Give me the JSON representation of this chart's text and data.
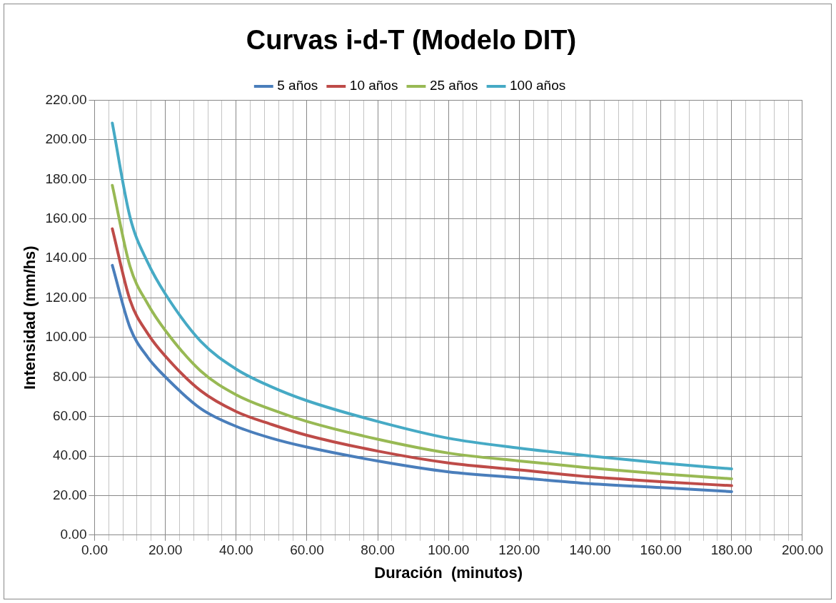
{
  "chart_data": {
    "type": "line",
    "title": "Curvas i-d-T (Modelo DIT)",
    "xlabel": "Duración  (minutos)",
    "ylabel": "Intensidad (mm/hs)",
    "x": [
      5,
      10,
      15,
      20,
      30,
      40,
      50,
      60,
      80,
      100,
      120,
      140,
      160,
      180
    ],
    "series": [
      {
        "name": "5 años",
        "color": "#4a7ebb",
        "values": [
          136.5,
          105,
          90,
          80,
          64,
          55,
          49,
          44.5,
          37.5,
          32,
          29,
          26,
          24,
          22
        ]
      },
      {
        "name": "10 años",
        "color": "#be4b48",
        "values": [
          155,
          119,
          102,
          90.5,
          73,
          62.5,
          56,
          50.5,
          42.5,
          36.5,
          33,
          29.5,
          27,
          25
        ]
      },
      {
        "name": "25 años",
        "color": "#98b954",
        "values": [
          177,
          136,
          117,
          103.5,
          83,
          71,
          63.5,
          57.5,
          48.5,
          41.5,
          37.5,
          34,
          31,
          28.5
        ]
      },
      {
        "name": "100 años",
        "color": "#46aac5",
        "values": [
          208.5,
          161,
          138,
          122,
          98,
          84,
          75,
          68,
          57.5,
          49,
          44,
          40,
          36.5,
          33.5
        ]
      }
    ],
    "xlim": [
      0,
      200
    ],
    "xticks": [
      {
        "value": 0,
        "label": "0.00"
      },
      {
        "value": 4,
        "label": null
      },
      {
        "value": 8,
        "label": null
      },
      {
        "value": 12,
        "label": null
      },
      {
        "value": 16,
        "label": null
      },
      {
        "value": 20,
        "label": "20.00"
      },
      {
        "value": 24,
        "label": null
      },
      {
        "value": 28,
        "label": null
      },
      {
        "value": 32,
        "label": null
      },
      {
        "value": 36,
        "label": null
      },
      {
        "value": 40,
        "label": "40.00"
      },
      {
        "value": 44,
        "label": null
      },
      {
        "value": 48,
        "label": null
      },
      {
        "value": 52,
        "label": null
      },
      {
        "value": 56,
        "label": null
      },
      {
        "value": 60,
        "label": "60.00"
      },
      {
        "value": 64,
        "label": null
      },
      {
        "value": 68,
        "label": null
      },
      {
        "value": 72,
        "label": null
      },
      {
        "value": 76,
        "label": null
      },
      {
        "value": 80,
        "label": "80.00"
      },
      {
        "value": 84,
        "label": null
      },
      {
        "value": 88,
        "label": null
      },
      {
        "value": 92,
        "label": null
      },
      {
        "value": 96,
        "label": null
      },
      {
        "value": 100,
        "label": "100.00"
      },
      {
        "value": 104,
        "label": null
      },
      {
        "value": 108,
        "label": null
      },
      {
        "value": 112,
        "label": null
      },
      {
        "value": 116,
        "label": null
      },
      {
        "value": 120,
        "label": "120.00"
      },
      {
        "value": 124,
        "label": null
      },
      {
        "value": 128,
        "label": null
      },
      {
        "value": 132,
        "label": null
      },
      {
        "value": 136,
        "label": null
      },
      {
        "value": 140,
        "label": "140.00"
      },
      {
        "value": 144,
        "label": null
      },
      {
        "value": 148,
        "label": null
      },
      {
        "value": 152,
        "label": null
      },
      {
        "value": 156,
        "label": null
      },
      {
        "value": 160,
        "label": "160.00"
      },
      {
        "value": 164,
        "label": null
      },
      {
        "value": 168,
        "label": null
      },
      {
        "value": 172,
        "label": null
      },
      {
        "value": 176,
        "label": null
      },
      {
        "value": 180,
        "label": "180.00"
      },
      {
        "value": 184,
        "label": null
      },
      {
        "value": 188,
        "label": null
      },
      {
        "value": 192,
        "label": null
      },
      {
        "value": 196,
        "label": null
      },
      {
        "value": 200,
        "label": "200.00"
      }
    ],
    "ylim": [
      0,
      220
    ],
    "yticks": [
      {
        "value": 0,
        "label": "0.00"
      },
      {
        "value": 20,
        "label": "20.00"
      },
      {
        "value": 40,
        "label": "40.00"
      },
      {
        "value": 60,
        "label": "60.00"
      },
      {
        "value": 80,
        "label": "80.00"
      },
      {
        "value": 100,
        "label": "100.00"
      },
      {
        "value": 120,
        "label": "120.00"
      },
      {
        "value": 140,
        "label": "140.00"
      },
      {
        "value": 160,
        "label": "160.00"
      },
      {
        "value": 180,
        "label": "180.00"
      },
      {
        "value": 200,
        "label": "200.00"
      },
      {
        "value": 220,
        "label": "220.00"
      }
    ],
    "grid": true,
    "legend": "top",
    "marker": "none",
    "line_style": "solid"
  }
}
